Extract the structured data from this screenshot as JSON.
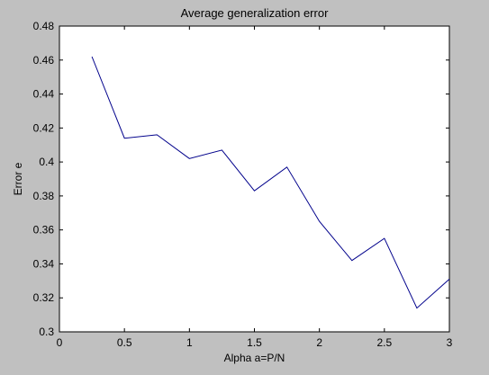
{
  "chart_data": {
    "type": "line",
    "title": "Average generalization error",
    "xlabel": "Alpha a=P/N",
    "ylabel": "Error e",
    "xlim": [
      0,
      3
    ],
    "ylim": [
      0.3,
      0.48
    ],
    "xticks": [
      "0",
      "0.5",
      "1",
      "1.5",
      "2",
      "2.5",
      "3"
    ],
    "yticks": [
      "0.3",
      "0.32",
      "0.34",
      "0.36",
      "0.38",
      "0.4",
      "0.42",
      "0.44",
      "0.46",
      "0.48"
    ],
    "grid": false,
    "series": [
      {
        "x": [
          0.25,
          0.5,
          0.75,
          1.0,
          1.25,
          1.5,
          1.75,
          2.0,
          2.25,
          2.5,
          2.75,
          3.0
        ],
        "y": [
          0.462,
          0.414,
          0.416,
          0.402,
          0.407,
          0.383,
          0.397,
          0.365,
          0.342,
          0.355,
          0.314,
          0.331
        ],
        "color": "#00008b"
      }
    ]
  },
  "colors": {
    "figure_bg": "#c0c0c0",
    "axes_bg": "#ffffff",
    "line": "#00008b"
  }
}
